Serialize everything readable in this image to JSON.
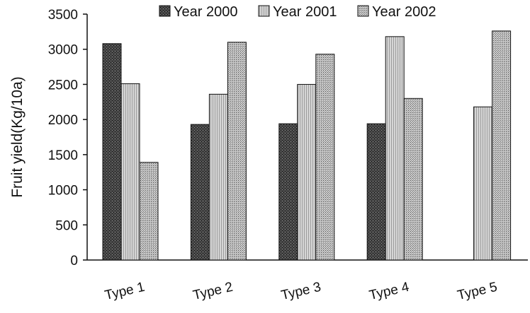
{
  "chart_data": {
    "type": "bar",
    "title": "",
    "xlabel": "",
    "ylabel": "Fruit yield(Kg/10a)",
    "ylim": [
      0,
      3500
    ],
    "yticks": [
      0,
      500,
      1000,
      1500,
      2000,
      2500,
      3000,
      3500
    ],
    "categories": [
      "Type 1",
      "Type 2",
      "Type 3",
      "Type 4",
      "Type 5"
    ],
    "series": [
      {
        "name": "Year 2000",
        "values": [
          3080,
          1930,
          1940,
          1940,
          null
        ]
      },
      {
        "name": "Year 2001",
        "values": [
          2510,
          2360,
          2500,
          3180,
          2180
        ]
      },
      {
        "name": "Year 2002",
        "values": [
          1390,
          3100,
          2930,
          2300,
          3260
        ]
      }
    ],
    "legend_position": "top",
    "grid": false,
    "colors": [
      "#3a3a3a",
      "#c4c4c4",
      "#9a9a9a"
    ]
  }
}
